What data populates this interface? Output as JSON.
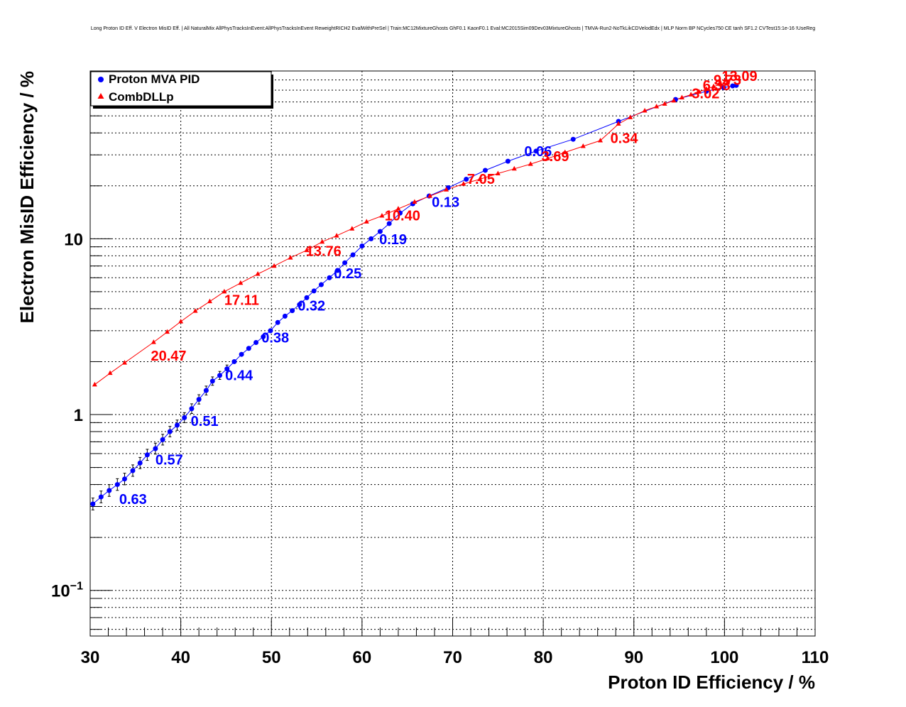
{
  "chart_data": {
    "type": "scatter",
    "title": "Long Proton ID Eff. V Electron MisID Eff. | All NaturalMix AllPhysTracksInEvent:AllPhysTracksInEvent ReweightRICH2 EvalWithPreSel | Train:MC12MixtureGhosts GhF0.1 KaonF0.1 Eval:MC2015Sim09Dev03MixtureGhosts | TMVA-Run2-NoTkLikCDVelodEdx | MLP Norm BP NCycles750 CE tanh SF1.2 CVTest15:1e-16 !UseReg",
    "xlabel": "Proton ID Efficiency / %",
    "ylabel": "Electron MisID Efficiency / %",
    "xlim": [
      30,
      110
    ],
    "ylim": [
      0.055,
      90
    ],
    "yscale": "log",
    "grid": true,
    "legend_position": "top-left",
    "x_ticks": [
      "30",
      "40",
      "50",
      "60",
      "70",
      "80",
      "90",
      "100",
      "110"
    ],
    "y_ticks": [
      {
        "value": 0.1,
        "base": "10",
        "exp": "−1"
      },
      {
        "value": 1,
        "base": "1",
        "exp": ""
      },
      {
        "value": 10,
        "base": "10",
        "exp": ""
      }
    ],
    "series": [
      {
        "name": "Proton MVA PID",
        "color": "#0000ff",
        "marker": "circle",
        "x": [
          30.3,
          31.2,
          32.1,
          33.0,
          33.8,
          34.7,
          35.5,
          36.3,
          37.2,
          38.0,
          38.8,
          39.6,
          40.4,
          41.2,
          42.0,
          42.8,
          43.5,
          44.3,
          45.1,
          45.9,
          46.7,
          47.5,
          48.3,
          49.1,
          49.9,
          50.7,
          51.5,
          52.3,
          53.1,
          53.9,
          54.7,
          55.5,
          56.4,
          57.3,
          58.1,
          59.0,
          60.0,
          61.0,
          62.0,
          63.0,
          64.2,
          65.6,
          67.4,
          69.5,
          71.5,
          73.6,
          76.1,
          79.2,
          83.3,
          88.3,
          94.6,
          98.0,
          99.9,
          100.9,
          101.3
        ],
        "y": [
          0.31,
          0.34,
          0.37,
          0.4,
          0.43,
          0.48,
          0.53,
          0.59,
          0.64,
          0.72,
          0.8,
          0.87,
          0.96,
          1.08,
          1.22,
          1.37,
          1.55,
          1.67,
          1.82,
          2.0,
          2.2,
          2.38,
          2.57,
          2.77,
          3.0,
          3.34,
          3.63,
          3.9,
          4.22,
          4.62,
          5.05,
          5.48,
          6.0,
          6.6,
          7.3,
          8.1,
          9.1,
          10.0,
          11.0,
          12.2,
          14.0,
          15.8,
          17.5,
          19.5,
          21.8,
          24.5,
          27.6,
          31.5,
          36.8,
          46.5,
          62.0,
          69.0,
          72.5,
          74.0,
          74.5
        ],
        "labels": [
          {
            "x": 33.2,
            "y": 0.31,
            "text": "0.63"
          },
          {
            "x": 37.2,
            "y": 0.52,
            "text": "0.57"
          },
          {
            "x": 41.1,
            "y": 0.86,
            "text": "0.51"
          },
          {
            "x": 44.9,
            "y": 1.57,
            "text": "0.44"
          },
          {
            "x": 48.9,
            "y": 2.57,
            "text": "0.38"
          },
          {
            "x": 52.9,
            "y": 3.9,
            "text": "0.32"
          },
          {
            "x": 56.9,
            "y": 5.95,
            "text": "0.25"
          },
          {
            "x": 61.9,
            "y": 9.3,
            "text": "0.19"
          },
          {
            "x": 67.7,
            "y": 15.2,
            "text": "0.13"
          },
          {
            "x": 77.9,
            "y": 29.5,
            "text": "0.06"
          }
        ]
      },
      {
        "name": "CombDLLp",
        "color": "#ff0000",
        "marker": "triangle",
        "x": [
          30.5,
          32.2,
          33.8,
          37.0,
          38.5,
          40.0,
          41.6,
          43.2,
          44.8,
          46.6,
          48.5,
          50.3,
          52.1,
          53.9,
          55.6,
          57.2,
          58.9,
          60.5,
          62.2,
          64.0,
          65.8,
          67.5,
          69.3,
          71.2,
          73.0,
          75.0,
          76.8,
          78.6,
          80.5,
          82.4,
          84.4,
          86.3,
          88.3,
          89.6,
          91.2,
          92.5,
          93.4,
          94.4,
          95.3,
          96.3,
          97.2,
          98.0,
          98.8,
          99.6,
          100.3
        ],
        "y": [
          1.48,
          1.72,
          1.97,
          2.58,
          2.95,
          3.38,
          3.88,
          4.4,
          5.0,
          5.6,
          6.3,
          7.0,
          7.8,
          8.6,
          9.6,
          10.4,
          11.4,
          12.5,
          13.5,
          14.8,
          16.2,
          17.5,
          19.0,
          20.5,
          21.8,
          23.5,
          25.0,
          26.6,
          28.6,
          31.0,
          33.6,
          36.2,
          45.0,
          49.0,
          53.5,
          56.5,
          58.5,
          61.0,
          63.5,
          66.0,
          68.5,
          71.0,
          73.5,
          75.5,
          76.8
        ],
        "labels": [
          {
            "x": 36.7,
            "y": 2.03,
            "text": "20.47"
          },
          {
            "x": 44.8,
            "y": 4.2,
            "text": "17.11"
          },
          {
            "x": 53.8,
            "y": 8.0,
            "text": "13.76"
          },
          {
            "x": 62.5,
            "y": 12.7,
            "text": "10.40"
          },
          {
            "x": 71.6,
            "y": 20.5,
            "text": "7.05"
          },
          {
            "x": 79.8,
            "y": 27.6,
            "text": "3.69"
          },
          {
            "x": 87.4,
            "y": 35.0,
            "text": "0.34"
          },
          {
            "x": 96.4,
            "y": 63.0,
            "text": "3.02"
          },
          {
            "x": 97.6,
            "y": 70.0,
            "text": "6.38"
          },
          {
            "x": 98.8,
            "y": 75.0,
            "text": "9.73"
          },
          {
            "x": 99.7,
            "y": 79.0,
            "text": "13.09"
          }
        ]
      }
    ]
  }
}
